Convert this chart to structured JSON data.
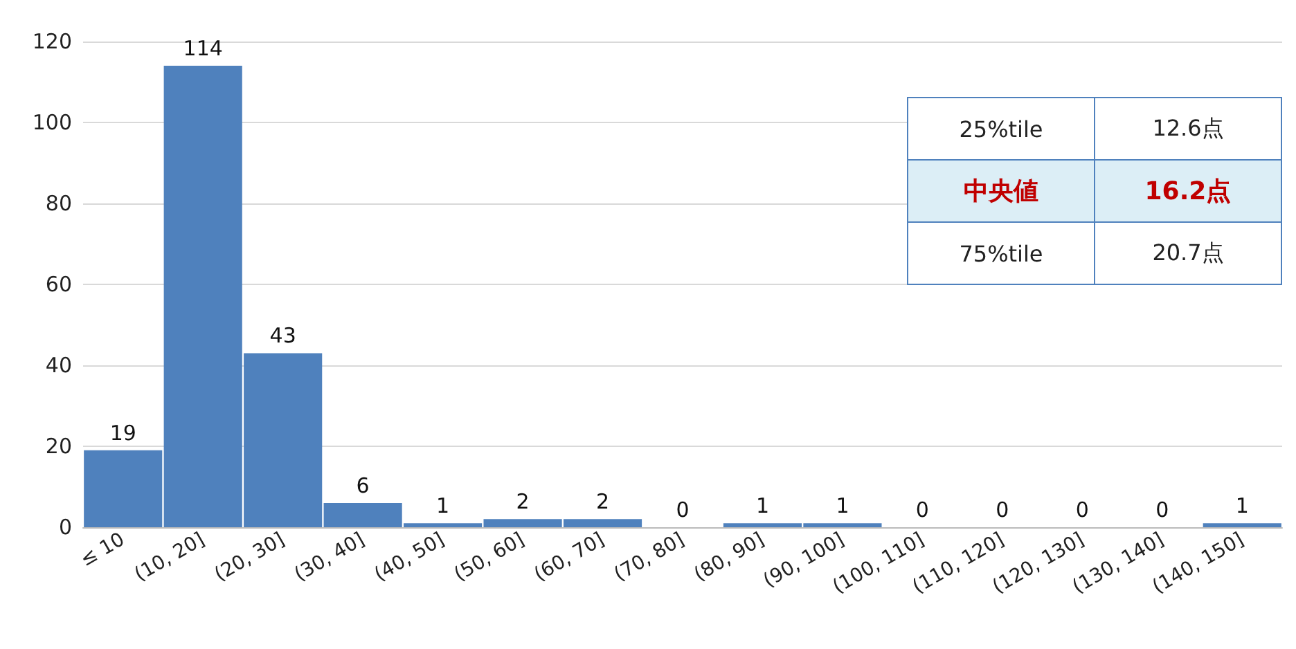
{
  "chart_data": {
    "type": "bar",
    "categories": [
      "≤ 10",
      "(10, 20]",
      "(20, 30]",
      "(30, 40]",
      "(40, 50]",
      "(50, 60]",
      "(60, 70]",
      "(70, 80]",
      "(80, 90]",
      "(90, 100]",
      "(100, 110]",
      "(110, 120]",
      "(120, 130]",
      "(130, 140]",
      "(140, 150]"
    ],
    "values": [
      19,
      114,
      43,
      6,
      1,
      2,
      2,
      0,
      1,
      1,
      0,
      0,
      0,
      0,
      1
    ],
    "color": "#4f81bd",
    "ylim": [
      0,
      120
    ],
    "yticks": [
      0,
      20,
      40,
      60,
      80,
      100,
      120
    ],
    "grid": "y",
    "data_labels": true,
    "annotations": [
      "25%tile",
      "12.6点",
      "中央値",
      "16.2点",
      "75%tile",
      "20.7点"
    ]
  }
}
